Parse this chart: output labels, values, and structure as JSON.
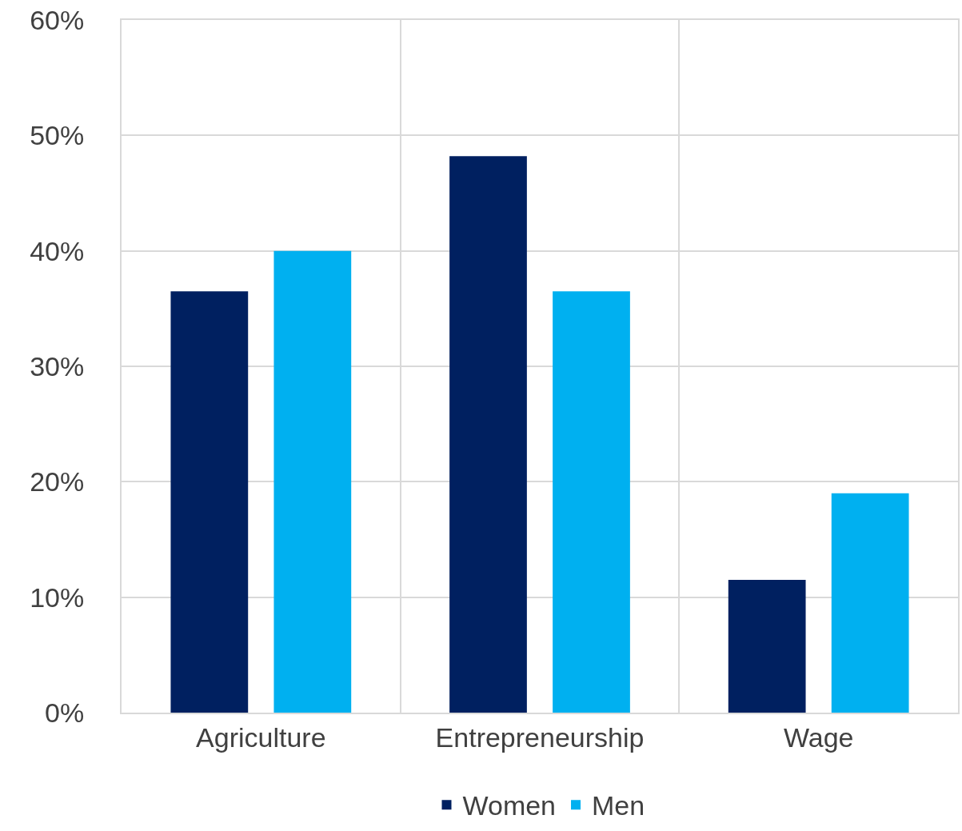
{
  "chart_data": {
    "type": "bar",
    "categories": [
      "Agriculture",
      "Entrepreneurship",
      "Wage"
    ],
    "series": [
      {
        "name": "Women",
        "color": "#002060",
        "values": [
          36.5,
          48.2,
          11.5
        ]
      },
      {
        "name": "Men",
        "color": "#00b0f0",
        "values": [
          40.0,
          36.5,
          19.0
        ]
      }
    ],
    "ylim": [
      0,
      60
    ],
    "yticks": [
      {
        "value": 0,
        "label": "0%"
      },
      {
        "value": 10,
        "label": "10%"
      },
      {
        "value": 20,
        "label": "20%"
      },
      {
        "value": 30,
        "label": "30%"
      },
      {
        "value": 40,
        "label": "40%"
      },
      {
        "value": 50,
        "label": "50%"
      },
      {
        "value": 60,
        "label": "60%"
      }
    ],
    "grid": true,
    "legend": "bottom"
  }
}
